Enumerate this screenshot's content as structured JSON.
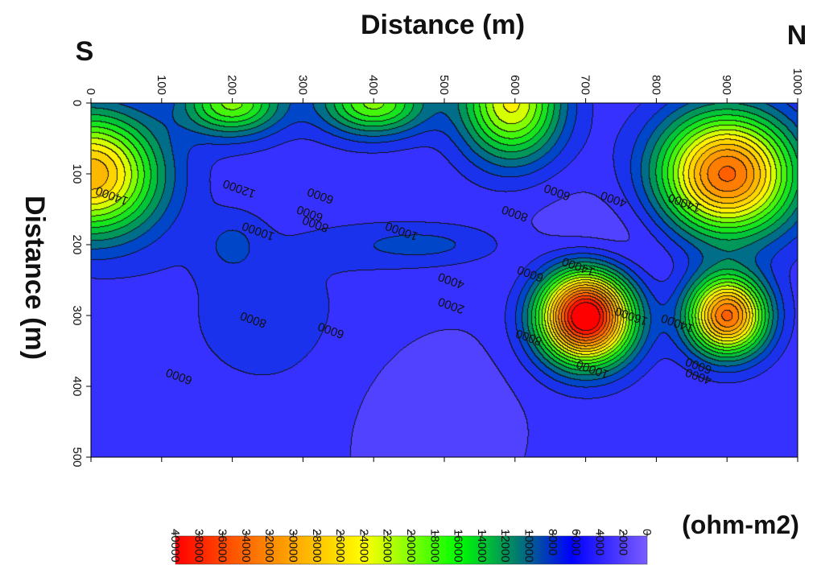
{
  "chart_data": {
    "type": "heatmap",
    "title": "Distance (m)",
    "xlabel": "Distance (m)",
    "ylabel": "Distance (m)",
    "orientation_labels": {
      "left": "S",
      "right": "N"
    },
    "x_ticks": [
      "0",
      "100",
      "200",
      "300",
      "400",
      "500",
      "600",
      "700",
      "800",
      "900",
      "1000"
    ],
    "y_ticks": [
      "0",
      "100",
      "200",
      "300",
      "400",
      "500"
    ],
    "xlim": [
      0,
      1000
    ],
    "ylim": [
      0,
      500
    ],
    "colorbar": {
      "label": "(ohm-m2)",
      "ticks": [
        "40000",
        "38000",
        "36000",
        "34000",
        "32000",
        "30000",
        "28000",
        "26000",
        "24000",
        "22000",
        "20000",
        "18000",
        "16000",
        "14000",
        "12000",
        "10000",
        "8000",
        "6000",
        "4000",
        "2000",
        "0"
      ],
      "range": [
        0,
        40000
      ],
      "colors": [
        "#ff0000",
        "#ff8800",
        "#ffff00",
        "#00ff00",
        "#007a5a",
        "#0000ff",
        "#7a5cff"
      ]
    },
    "contour_labels": [
      {
        "text": "14000",
        "x": 30,
        "y": 130
      },
      {
        "text": "12000",
        "x": 210,
        "y": 120
      },
      {
        "text": "10000",
        "x": 237,
        "y": 180
      },
      {
        "text": "6000",
        "x": 325,
        "y": 130
      },
      {
        "text": "8000",
        "x": 318,
        "y": 170
      },
      {
        "text": "6000",
        "x": 310,
        "y": 155
      },
      {
        "text": "10000",
        "x": 440,
        "y": 180
      },
      {
        "text": "8000",
        "x": 600,
        "y": 155
      },
      {
        "text": "6000",
        "x": 660,
        "y": 125
      },
      {
        "text": "4000",
        "x": 740,
        "y": 135
      },
      {
        "text": "14000",
        "x": 840,
        "y": 140
      },
      {
        "text": "4000",
        "x": 510,
        "y": 250
      },
      {
        "text": "2000",
        "x": 510,
        "y": 285
      },
      {
        "text": "6000",
        "x": 622,
        "y": 240
      },
      {
        "text": "8000",
        "x": 620,
        "y": 330
      },
      {
        "text": "14000",
        "x": 690,
        "y": 230
      },
      {
        "text": "16000",
        "x": 765,
        "y": 300
      },
      {
        "text": "10000",
        "x": 710,
        "y": 375
      },
      {
        "text": "14000",
        "x": 830,
        "y": 310
      },
      {
        "text": "6000",
        "x": 860,
        "y": 370
      },
      {
        "text": "4000",
        "x": 860,
        "y": 385
      },
      {
        "text": "8000",
        "x": 230,
        "y": 305
      },
      {
        "text": "6000",
        "x": 340,
        "y": 320
      },
      {
        "text": "6000",
        "x": 125,
        "y": 385
      }
    ],
    "anomalies": [
      {
        "x": 0,
        "y": 100,
        "peak": 25000,
        "sx": 95,
        "sy": 85
      },
      {
        "x": 200,
        "y": 0,
        "peak": 16000,
        "sx": 70,
        "sy": 45
      },
      {
        "x": 400,
        "y": 0,
        "peak": 16000,
        "sx": 75,
        "sy": 45
      },
      {
        "x": 595,
        "y": 0,
        "peak": 20000,
        "sx": 70,
        "sy": 80
      },
      {
        "x": 900,
        "y": 100,
        "peak": 30000,
        "sx": 95,
        "sy": 85
      },
      {
        "x": 700,
        "y": 300,
        "peak": 40000,
        "sx": 65,
        "sy": 65
      },
      {
        "x": 900,
        "y": 300,
        "peak": 30000,
        "sx": 55,
        "sy": 55
      },
      {
        "x": 470,
        "y": 200,
        "peak": 4000,
        "sx": 120,
        "sy": 30
      },
      {
        "x": 200,
        "y": 200,
        "peak": 3000,
        "sx": 40,
        "sy": 40
      }
    ]
  }
}
